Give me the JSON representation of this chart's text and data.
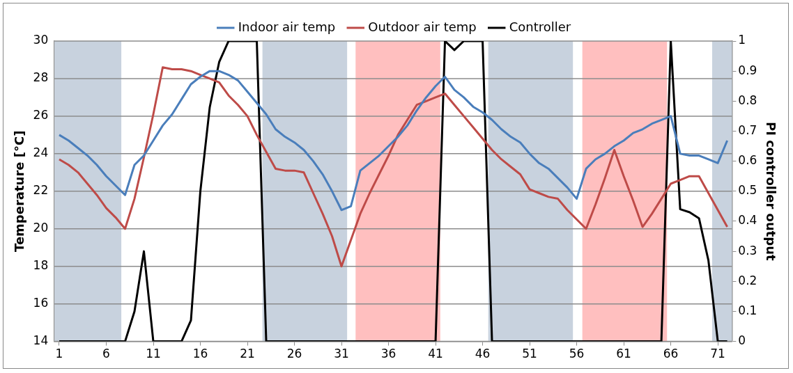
{
  "chart_data": {
    "type": "line",
    "ylabel": "Temperature [°C]",
    "y2label": "PI controller output",
    "x": [
      1,
      2,
      3,
      4,
      5,
      6,
      7,
      8,
      9,
      10,
      11,
      12,
      13,
      14,
      15,
      16,
      17,
      18,
      19,
      20,
      21,
      22,
      23,
      24,
      25,
      26,
      27,
      28,
      29,
      30,
      31,
      32,
      33,
      34,
      35,
      36,
      37,
      38,
      39,
      40,
      41,
      42,
      43,
      44,
      45,
      46,
      47,
      48,
      49,
      50,
      51,
      52,
      53,
      54,
      55,
      56,
      57,
      58,
      59,
      60,
      61,
      62,
      63,
      64,
      65,
      66,
      67,
      68,
      69,
      70,
      71,
      72
    ],
    "xlim": [
      0.5,
      72.5
    ],
    "xticks": [
      1,
      6,
      11,
      16,
      21,
      26,
      31,
      36,
      41,
      46,
      51,
      56,
      61,
      66,
      71
    ],
    "ylim": [
      14,
      30
    ],
    "yticks": [
      14,
      16,
      18,
      20,
      22,
      24,
      26,
      28,
      30
    ],
    "y2lim": [
      0,
      1
    ],
    "y2ticks": [
      0,
      0.1,
      0.2,
      0.3,
      0.4,
      0.5,
      0.6,
      0.7,
      0.8,
      0.9,
      1
    ],
    "grid": "y",
    "legend": "top",
    "marker": "none",
    "line_style": "solid",
    "bands": [
      {
        "axis": "x",
        "from": 0.5,
        "to": 7.6,
        "color": "#c8d2de"
      },
      {
        "axis": "x",
        "from": 22.6,
        "to": 31.6,
        "color": "#c8d2de"
      },
      {
        "axis": "x",
        "from": 32.5,
        "to": 41.5,
        "color": "#ffbfbf"
      },
      {
        "axis": "x",
        "from": 46.6,
        "to": 55.6,
        "color": "#c8d2de"
      },
      {
        "axis": "x",
        "from": 56.6,
        "to": 65.6,
        "color": "#ffbfbf"
      },
      {
        "axis": "x",
        "from": 70.4,
        "to": 72.5,
        "color": "#c8d2de"
      }
    ],
    "series": [
      {
        "name": "Indoor air temp",
        "color": "#4a7ebb",
        "values": [
          25.0,
          24.7,
          24.3,
          23.9,
          23.4,
          22.8,
          22.3,
          21.8,
          23.4,
          23.9,
          24.7,
          25.5,
          26.1,
          26.9,
          27.7,
          28.1,
          28.4,
          28.4,
          28.2,
          27.9,
          27.3,
          26.7,
          26.1,
          25.3,
          24.9,
          24.6,
          24.2,
          23.6,
          22.9,
          22.0,
          21.0,
          21.2,
          23.1,
          23.5,
          23.9,
          24.4,
          24.9,
          25.5,
          26.3,
          27.0,
          27.6,
          28.1,
          27.4,
          27.0,
          26.5,
          26.2,
          25.8,
          25.3,
          24.9,
          24.6,
          24.0,
          23.5,
          23.2,
          22.7,
          22.2,
          21.6,
          23.2,
          23.7,
          24.0,
          24.4,
          24.7,
          25.1,
          25.3,
          25.6,
          25.8,
          26.0,
          24.0,
          23.9,
          23.9,
          23.7,
          23.5,
          24.7
        ]
      },
      {
        "name": "Outdoor air temp",
        "color": "#be4b48",
        "values": [
          23.7,
          23.4,
          23.0,
          22.4,
          21.8,
          21.1,
          20.6,
          20.0,
          21.6,
          23.8,
          26.1,
          28.6,
          28.5,
          28.5,
          28.4,
          28.2,
          28.0,
          27.8,
          27.1,
          26.6,
          26.0,
          25.0,
          24.1,
          23.2,
          23.1,
          23.1,
          23.0,
          21.9,
          20.8,
          19.6,
          18.0,
          19.4,
          20.8,
          21.9,
          22.9,
          23.9,
          25.0,
          25.8,
          26.6,
          26.8,
          27.0,
          27.2,
          26.6,
          26.0,
          25.4,
          24.8,
          24.2,
          23.7,
          23.3,
          22.9,
          22.1,
          21.9,
          21.7,
          21.6,
          21.0,
          20.5,
          20.0,
          21.3,
          22.7,
          24.2,
          22.8,
          21.5,
          20.1,
          20.8,
          21.6,
          22.4,
          22.6,
          22.8,
          22.8,
          21.9,
          21.0,
          20.1
        ]
      },
      {
        "name": "Controller",
        "color": "#000000",
        "axis": "y2",
        "values": [
          0,
          0,
          0,
          0,
          0,
          0,
          0,
          0,
          0.1,
          0.3,
          0,
          0,
          0,
          0,
          0.07,
          0.5,
          0.78,
          0.93,
          1,
          1,
          1,
          1,
          0,
          0,
          0,
          0,
          0,
          0,
          0,
          0,
          0,
          0,
          0,
          0,
          0,
          0,
          0,
          0,
          0,
          0,
          0,
          1,
          0.97,
          1,
          1,
          1,
          0,
          0,
          0,
          0,
          0,
          0,
          0,
          0,
          0,
          0,
          0,
          0,
          0,
          0,
          0,
          0,
          0,
          0,
          0,
          1,
          0.44,
          0.43,
          0.41,
          0.27,
          0,
          0
        ]
      }
    ]
  }
}
